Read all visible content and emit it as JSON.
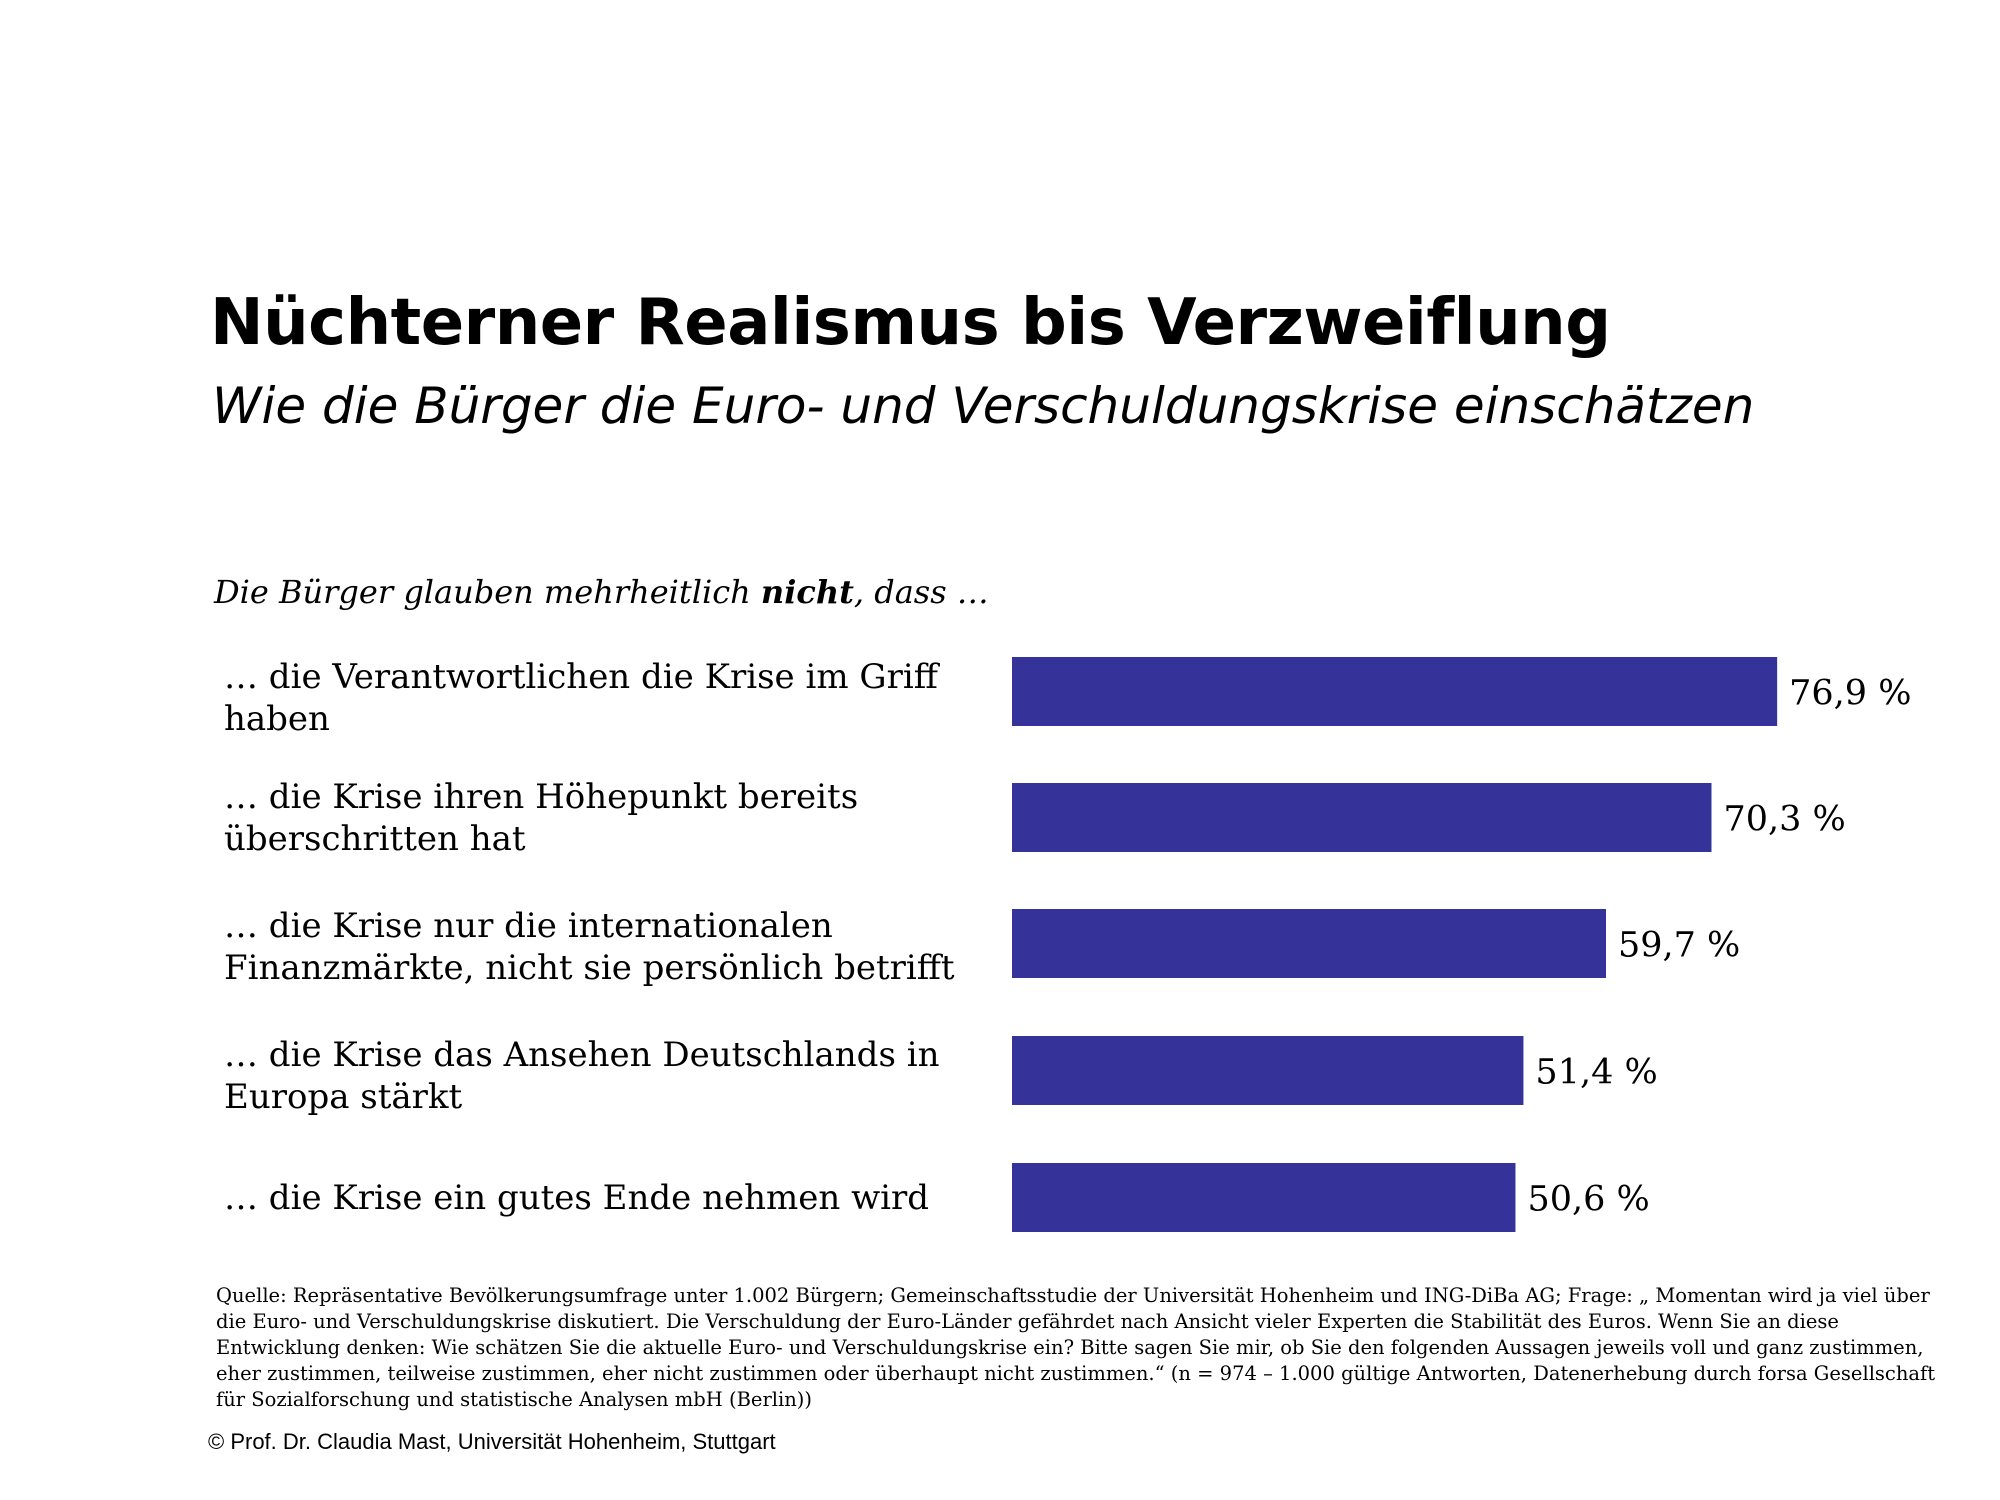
{
  "header": {
    "title": "Nüchterner Realismus bis Verzweiflung",
    "subtitle": "Wie die Bürger die Euro- und Verschuldungskrise einschätzen"
  },
  "intro": {
    "before": "Die Bürger glauben mehrheitlich ",
    "emphasis": "nicht",
    "after": ", dass …"
  },
  "colors": {
    "bar": "#353399"
  },
  "chart_data": {
    "type": "bar",
    "orientation": "horizontal",
    "categories": [
      "… die Verantwortlichen die Krise im Griff haben",
      "… die Krise ihren Höhepunkt bereits überschritten hat",
      "… die Krise nur die internationalen Finanzmärkte, nicht sie persönlich betrifft",
      "… die Krise das Ansehen Deutschlands in Europa stärkt",
      "… die Krise ein gutes Ende nehmen wird"
    ],
    "values": [
      76.9,
      70.3,
      59.7,
      51.4,
      50.6
    ],
    "value_labels": [
      "76,9 %",
      "70,3 %",
      "59,7 %",
      "51,4 %",
      "50,6 %"
    ],
    "unit": "%",
    "xlim": [
      0,
      100
    ],
    "grid": false,
    "legend": "none"
  },
  "footer": {
    "source": "Quelle: Repräsentative Bevölkerungsumfrage unter 1.002 Bürgern; Gemeinschaftsstudie der Universität Hohenheim und ING-DiBa AG; Frage: „ Momentan wird ja viel über die Euro- und Verschuldungskrise diskutiert. Die Verschuldung der Euro-Länder gefährdet nach Ansicht vieler Experten die Stabilität des Euros. Wenn Sie an diese Entwicklung denken: Wie schätzen Sie die aktuelle Euro- und Verschuldungskrise ein? Bitte sagen Sie mir, ob Sie den folgenden Aussagen jeweils voll und ganz zustimmen, eher zustimmen, teilweise zustimmen, eher nicht zustimmen oder überhaupt nicht zustimmen.“ (n = 974 – 1.000 gültige Antworten, Datenerhebung durch forsa Gesellschaft für Sozialforschung und statistische Analysen mbH (Berlin))",
    "copyright": "© Prof. Dr. Claudia Mast, Universität Hohenheim, Stuttgart"
  }
}
